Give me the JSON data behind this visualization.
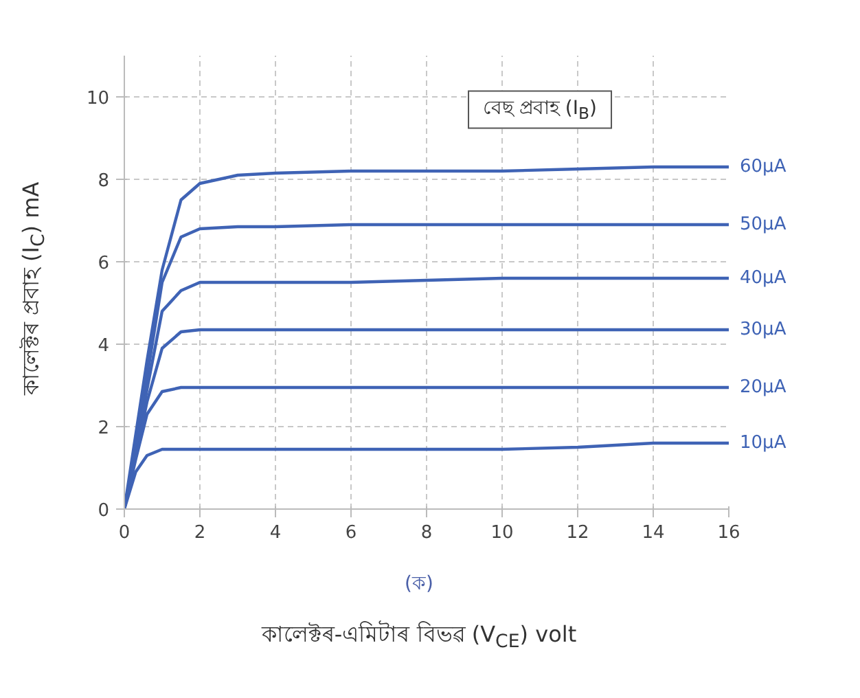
{
  "chart_data": {
    "type": "line",
    "xlabel": "কালেক্টৰ-এমিটাৰ বিভৱ (V$_{CE}$) volt",
    "ylabel": "কালেক্টৰ প্ৰবাহ (I$_{C}$) mA",
    "legend_title": "বেছ প্ৰবাহ (I$_{B}$)",
    "annotations": [
      "(ক)"
    ],
    "x": [
      0,
      0.3,
      0.6,
      1,
      1.5,
      2,
      3,
      4,
      6,
      8,
      10,
      12,
      14,
      16
    ],
    "series": [
      {
        "name": "60µA",
        "color": "#3f63b5",
        "values": [
          0,
          1.8,
          3.6,
          5.8,
          7.5,
          7.9,
          8.1,
          8.15,
          8.2,
          8.2,
          8.2,
          8.25,
          8.3,
          8.3
        ]
      },
      {
        "name": "50µA",
        "color": "#3f63b5",
        "values": [
          0,
          1.5,
          3.2,
          5.5,
          6.6,
          6.8,
          6.85,
          6.85,
          6.9,
          6.9,
          6.9,
          6.9,
          6.9,
          6.9
        ]
      },
      {
        "name": "40µA",
        "color": "#3f63b5",
        "values": [
          0,
          1.4,
          2.9,
          4.8,
          5.3,
          5.5,
          5.5,
          5.5,
          5.5,
          5.55,
          5.6,
          5.6,
          5.6,
          5.6
        ]
      },
      {
        "name": "30µA",
        "color": "#3f63b5",
        "values": [
          0,
          1.3,
          2.6,
          3.9,
          4.3,
          4.35,
          4.35,
          4.35,
          4.35,
          4.35,
          4.35,
          4.35,
          4.35,
          4.35
        ]
      },
      {
        "name": "20µA",
        "color": "#3f63b5",
        "values": [
          0,
          1.2,
          2.3,
          2.85,
          2.95,
          2.95,
          2.95,
          2.95,
          2.95,
          2.95,
          2.95,
          2.95,
          2.95,
          2.95
        ]
      },
      {
        "name": "10µA",
        "color": "#3f63b5",
        "values": [
          0,
          0.9,
          1.3,
          1.45,
          1.45,
          1.45,
          1.45,
          1.45,
          1.45,
          1.45,
          1.45,
          1.5,
          1.6,
          1.6
        ]
      }
    ],
    "xlim": [
      0,
      16
    ],
    "ylim": [
      0,
      11
    ],
    "xticks": [
      0,
      2,
      4,
      6,
      8,
      10,
      12,
      14,
      16
    ],
    "yticks": [
      0,
      2,
      4,
      6,
      8,
      10
    ],
    "grid": true,
    "legend": false,
    "marker": "none",
    "line_style": "solid"
  }
}
